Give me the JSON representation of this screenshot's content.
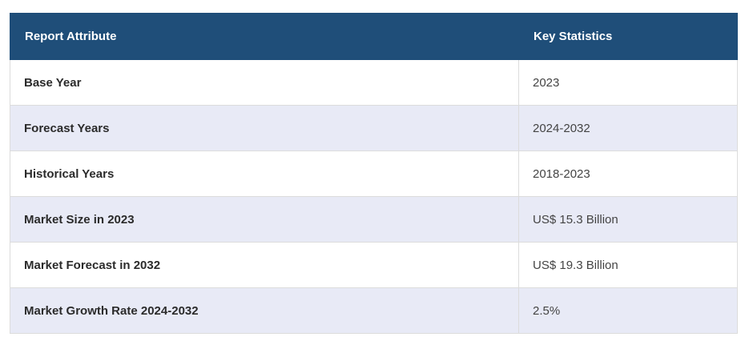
{
  "table": {
    "headers": [
      "Report Attribute",
      "Key Statistics"
    ],
    "rows": [
      [
        "Base Year",
        "2023"
      ],
      [
        "Forecast Years",
        "2024-2032"
      ],
      [
        "Historical Years",
        "2018-2023"
      ],
      [
        "Market Size in 2023",
        "US$ 15.3 Billion"
      ],
      [
        "Market Forecast in 2032",
        "US$ 19.3 Billion"
      ],
      [
        "Market Growth Rate 2024-2032",
        "2.5%"
      ]
    ]
  },
  "colors": {
    "header_bg": "#1f4e79",
    "header_text": "#ffffff",
    "row_alt_bg": "#e8eaf6",
    "row_bg": "#ffffff",
    "border": "#dcdcdc"
  }
}
